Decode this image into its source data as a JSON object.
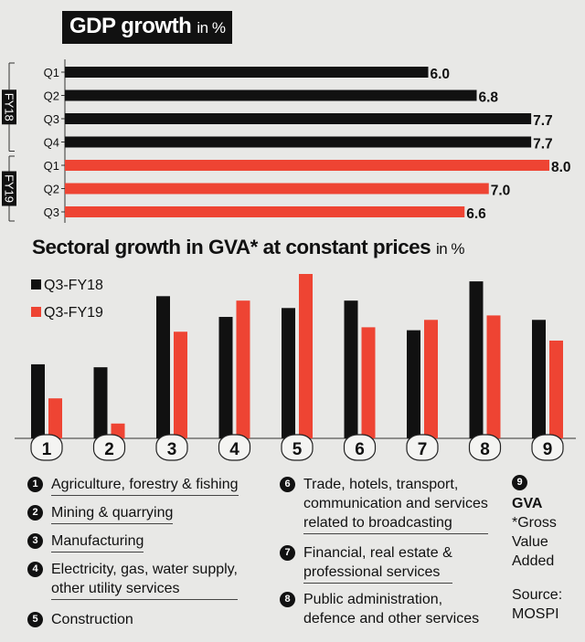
{
  "colors": {
    "fy18": "#111111",
    "fy19": "#ee4433",
    "background": "#e8e8e6"
  },
  "chart_data": [
    {
      "type": "bar",
      "orientation": "horizontal",
      "title": "GDP growth",
      "title_unit": "in %",
      "groups": [
        {
          "name": "FY18",
          "color": "#111111",
          "quarters": [
            "Q1",
            "Q2",
            "Q3",
            "Q4"
          ],
          "values": [
            6.0,
            6.8,
            7.7,
            7.7
          ]
        },
        {
          "name": "FY19",
          "color": "#ee4433",
          "quarters": [
            "Q1",
            "Q2",
            "Q3"
          ],
          "values": [
            8.0,
            7.0,
            6.6
          ]
        }
      ],
      "value_labels": [
        "6.0",
        "6.8",
        "7.7",
        "7.7",
        "8.0",
        "7.0",
        "6.6"
      ],
      "xlim": [
        0,
        8.0
      ]
    },
    {
      "type": "bar",
      "orientation": "vertical",
      "title": "Sectoral growth in GVA* at constant prices",
      "title_unit": "in %",
      "legend_position": "top-left",
      "categories": [
        "1",
        "2",
        "3",
        "4",
        "5",
        "6",
        "7",
        "8",
        "9"
      ],
      "series": [
        {
          "name": "Q3-FY18",
          "color": "#111111",
          "values": [
            5.0,
            4.8,
            9.6,
            8.2,
            8.8,
            9.3,
            7.3,
            10.6,
            8.0
          ]
        },
        {
          "name": "Q3-FY19",
          "color": "#ee4433",
          "values": [
            2.7,
            1.0,
            7.2,
            9.3,
            11.1,
            7.5,
            8.0,
            8.3,
            6.6
          ]
        }
      ]
    }
  ],
  "legend": [
    {
      "num": "1",
      "text": "Agriculture, forestry & fishing"
    },
    {
      "num": "2",
      "text": "Mining & quarrying"
    },
    {
      "num": "3",
      "text": "Manufacturing"
    },
    {
      "num": "4",
      "text": "Electricity, gas, water supply,",
      "text2": "other utility services"
    },
    {
      "num": "5",
      "text": "Construction"
    },
    {
      "num": "6",
      "text": "Trade, hotels, transport,",
      "text2": "communication and services",
      "text3": "related to broadcasting"
    },
    {
      "num": "7",
      "text": "Financial, real estate &",
      "text2": "professional services"
    },
    {
      "num": "8",
      "text": "Public administration,",
      "text2": "defence and other services"
    },
    {
      "num": "9",
      "text": "GVA"
    }
  ],
  "footnote": {
    "l1": "*Gross",
    "l2": "Value",
    "l3": "Added"
  },
  "source": {
    "l1": "Source:",
    "l2": "MOSPI"
  }
}
